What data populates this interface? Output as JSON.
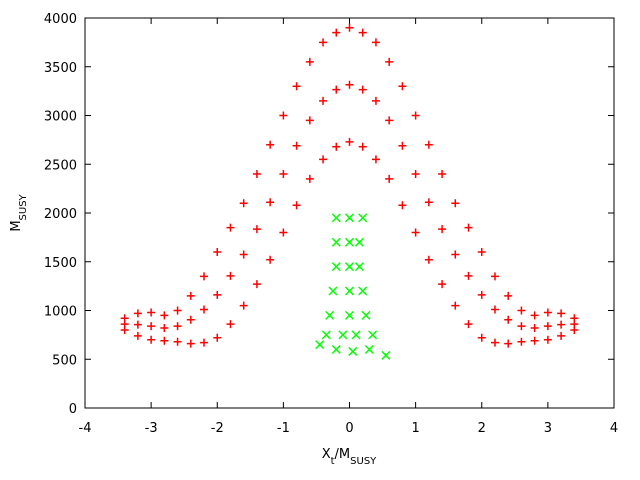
{
  "chart_data": {
    "type": "scatter",
    "xlabel": [
      "X",
      "t",
      "/M",
      "SUSY"
    ],
    "ylabel": [
      "M",
      "SUSY"
    ],
    "xlim": [
      -4,
      4
    ],
    "xticks": [
      -4,
      -3,
      -2,
      -1,
      0,
      1,
      2,
      3,
      4
    ],
    "ylim": [
      0,
      4000
    ],
    "yticks": [
      0,
      500,
      1000,
      1500,
      2000,
      2500,
      3000,
      3500,
      4000
    ],
    "series": [
      {
        "color": "#ff0000",
        "marker": "+",
        "x": [
          -3.4,
          -3.4,
          -3.4,
          -3.2,
          -3.2,
          -3.2,
          -3.0,
          -3.0,
          -3.0,
          -2.8,
          -2.8,
          -2.8,
          -2.6,
          -2.6,
          -2.6,
          -2.4,
          -2.4,
          -2.4,
          -2.2,
          -2.2,
          -2.2,
          -2.0,
          -2.0,
          -2.0,
          -1.8,
          -1.8,
          -1.8,
          -1.6,
          -1.6,
          -1.6,
          -1.4,
          -1.4,
          -1.4,
          -1.2,
          -1.2,
          -1.2,
          -1.0,
          -1.0,
          -1.0,
          -0.8,
          -0.8,
          -0.8,
          -0.6,
          -0.6,
          -0.6,
          -0.4,
          -0.4,
          -0.4,
          -0.2,
          -0.2,
          -0.2,
          0,
          0,
          0,
          0.2,
          0.2,
          0.2,
          0.4,
          0.4,
          0.4,
          0.6,
          0.6,
          0.6,
          0.8,
          0.8,
          0.8,
          1.0,
          1.0,
          1.0,
          1.2,
          1.2,
          1.2,
          1.4,
          1.4,
          1.4,
          1.6,
          1.6,
          1.6,
          1.8,
          1.8,
          1.8,
          2.0,
          2.0,
          2.0,
          2.2,
          2.2,
          2.2,
          2.4,
          2.4,
          2.4,
          2.6,
          2.6,
          2.6,
          2.8,
          2.8,
          2.8,
          3.0,
          3.0,
          3.0,
          3.2,
          3.2,
          3.2,
          3.4,
          3.4,
          3.4
        ],
        "y": [
          800,
          860,
          920,
          740,
          855,
          970,
          700,
          840,
          980,
          690,
          820,
          950,
          680,
          840,
          1000,
          660,
          905,
          1150,
          670,
          1010,
          1350,
          720,
          1160,
          1600,
          860,
          1355,
          1850,
          1050,
          1575,
          2100,
          1270,
          1835,
          2400,
          1520,
          2110,
          2700,
          1800,
          2400,
          3000,
          2080,
          2690,
          3300,
          2350,
          2950,
          3550,
          2550,
          3150,
          3750,
          2680,
          3265,
          3850,
          2730,
          3315,
          3900,
          2680,
          3265,
          3850,
          2550,
          3150,
          3750,
          2350,
          2950,
          3550,
          2080,
          2690,
          3300,
          1800,
          2400,
          3000,
          1520,
          2110,
          2700,
          1270,
          1835,
          2400,
          1050,
          1575,
          2100,
          860,
          1355,
          1850,
          720,
          1160,
          1600,
          670,
          1010,
          1350,
          660,
          905,
          1150,
          680,
          840,
          1000,
          690,
          820,
          950,
          700,
          840,
          980,
          740,
          855,
          970,
          800,
          860,
          920
        ]
      },
      {
        "color": "#00ff00",
        "marker": "x",
        "x": [
          -0.2,
          0,
          0.2,
          -0.2,
          0,
          0.15,
          -0.2,
          0,
          0.15,
          -0.25,
          0,
          0.2,
          -0.3,
          0,
          0.25,
          -0.35,
          -0.1,
          0.1,
          0.35,
          -0.45,
          -0.2,
          0.05,
          0.3,
          0.55
        ],
        "y": [
          1950,
          1950,
          1950,
          1700,
          1700,
          1700,
          1450,
          1450,
          1450,
          1200,
          1200,
          1200,
          950,
          950,
          950,
          750,
          750,
          750,
          750,
          650,
          600,
          580,
          600,
          540
        ]
      }
    ]
  }
}
